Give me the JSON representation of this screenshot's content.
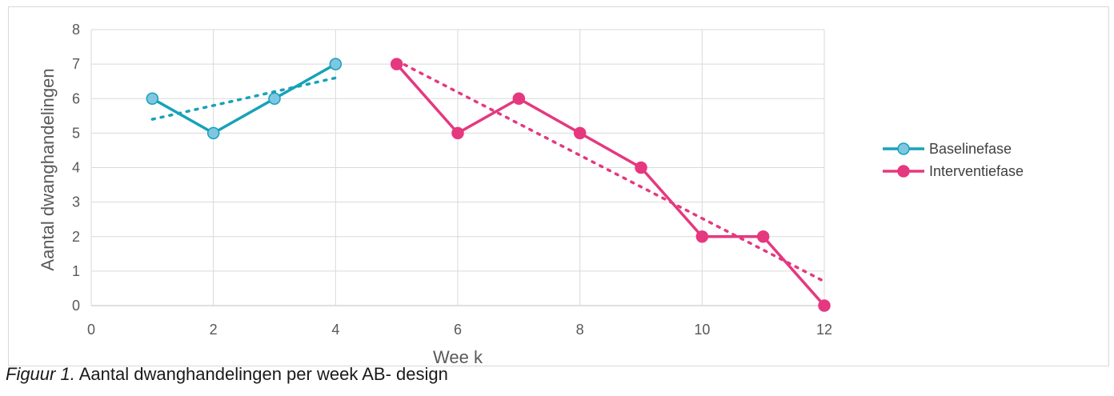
{
  "chart_data": {
    "type": "line",
    "title": "",
    "xlabel": "Wee k",
    "ylabel": "Aantal dwanghandelingen",
    "xlim": [
      0,
      12
    ],
    "ylim": [
      0,
      8
    ],
    "x_ticks": [
      0,
      2,
      4,
      6,
      8,
      10,
      12
    ],
    "y_ticks": [
      0,
      1,
      2,
      3,
      4,
      5,
      6,
      7,
      8
    ],
    "grid": true,
    "legend_position": "right",
    "series": [
      {
        "name": "Baselinefase",
        "color": "#17a2b8",
        "marker_fill": "#7fc6e3",
        "x": [
          1,
          2,
          3,
          4
        ],
        "y": [
          6,
          5,
          6,
          7
        ],
        "trendline": {
          "x": [
            1,
            4
          ],
          "y": [
            5.4,
            6.6
          ]
        }
      },
      {
        "name": "Interventiefase",
        "color": "#e5387f",
        "marker_fill": "#e5387f",
        "x": [
          5,
          6,
          7,
          8,
          9,
          10,
          11,
          12
        ],
        "y": [
          7,
          5,
          6,
          5,
          4,
          2,
          2,
          0
        ],
        "trendline": {
          "x": [
            5,
            12
          ],
          "y": [
            7.1,
            0.7
          ]
        }
      }
    ]
  },
  "caption": {
    "figure_label": "Figuur 1.",
    "text": " Aantal dwanghandelingen per week AB- design"
  }
}
